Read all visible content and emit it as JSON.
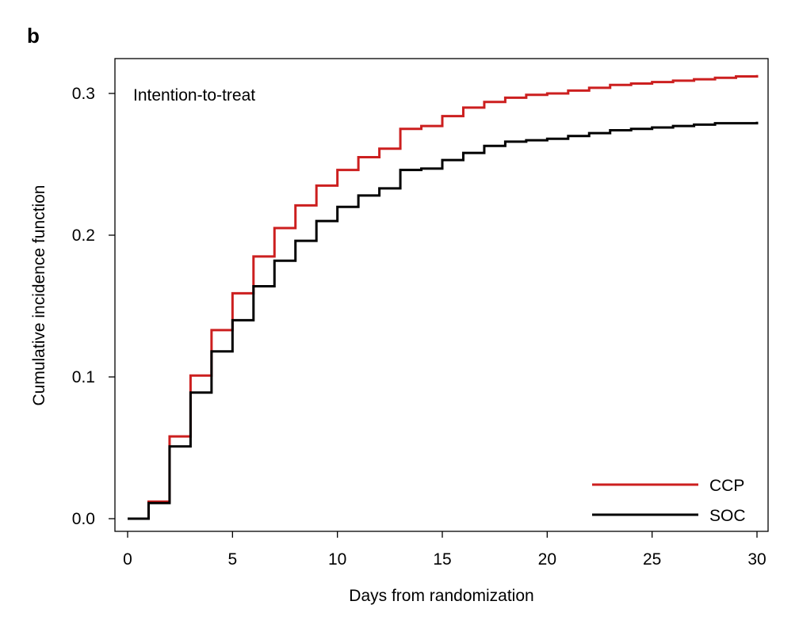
{
  "panel_label": "b",
  "chart_data": {
    "type": "line",
    "step": true,
    "title": "",
    "annotation": "Intention-to-treat",
    "xlabel": "Days from randomization",
    "ylabel": "Cumulative incidence function",
    "xlim": [
      0,
      30
    ],
    "ylim": [
      0,
      0.3
    ],
    "xticks": [
      0,
      5,
      10,
      15,
      20,
      25,
      30
    ],
    "yticks": [
      0.0,
      0.1,
      0.2,
      0.3
    ],
    "ytick_labels": [
      "0.0",
      "0.1",
      "0.2",
      "0.3"
    ],
    "grid": false,
    "legend_position": "bottom-right",
    "series": [
      {
        "name": "CCP",
        "color": "#cc1f1f",
        "x": [
          0,
          1,
          2,
          3,
          4,
          5,
          6,
          7,
          8,
          9,
          10,
          11,
          12,
          13,
          14,
          15,
          16,
          17,
          18,
          19,
          20,
          21,
          22,
          23,
          24,
          25,
          26,
          27,
          28,
          29,
          30
        ],
        "y": [
          0,
          0.012,
          0.058,
          0.101,
          0.133,
          0.159,
          0.185,
          0.205,
          0.221,
          0.235,
          0.246,
          0.255,
          0.261,
          0.275,
          0.277,
          0.284,
          0.29,
          0.294,
          0.297,
          0.299,
          0.3,
          0.302,
          0.304,
          0.306,
          0.307,
          0.308,
          0.309,
          0.31,
          0.311,
          0.312,
          0.313
        ]
      },
      {
        "name": "SOC",
        "color": "#000000",
        "x": [
          0,
          1,
          2,
          3,
          4,
          5,
          6,
          7,
          8,
          9,
          10,
          11,
          12,
          13,
          14,
          15,
          16,
          17,
          18,
          19,
          20,
          21,
          22,
          23,
          24,
          25,
          26,
          27,
          28,
          29,
          30
        ],
        "y": [
          0,
          0.011,
          0.051,
          0.089,
          0.118,
          0.14,
          0.164,
          0.182,
          0.196,
          0.21,
          0.22,
          0.228,
          0.233,
          0.246,
          0.247,
          0.253,
          0.258,
          0.263,
          0.266,
          0.267,
          0.268,
          0.27,
          0.272,
          0.274,
          0.275,
          0.276,
          0.277,
          0.278,
          0.279,
          0.279,
          0.28
        ]
      }
    ]
  }
}
